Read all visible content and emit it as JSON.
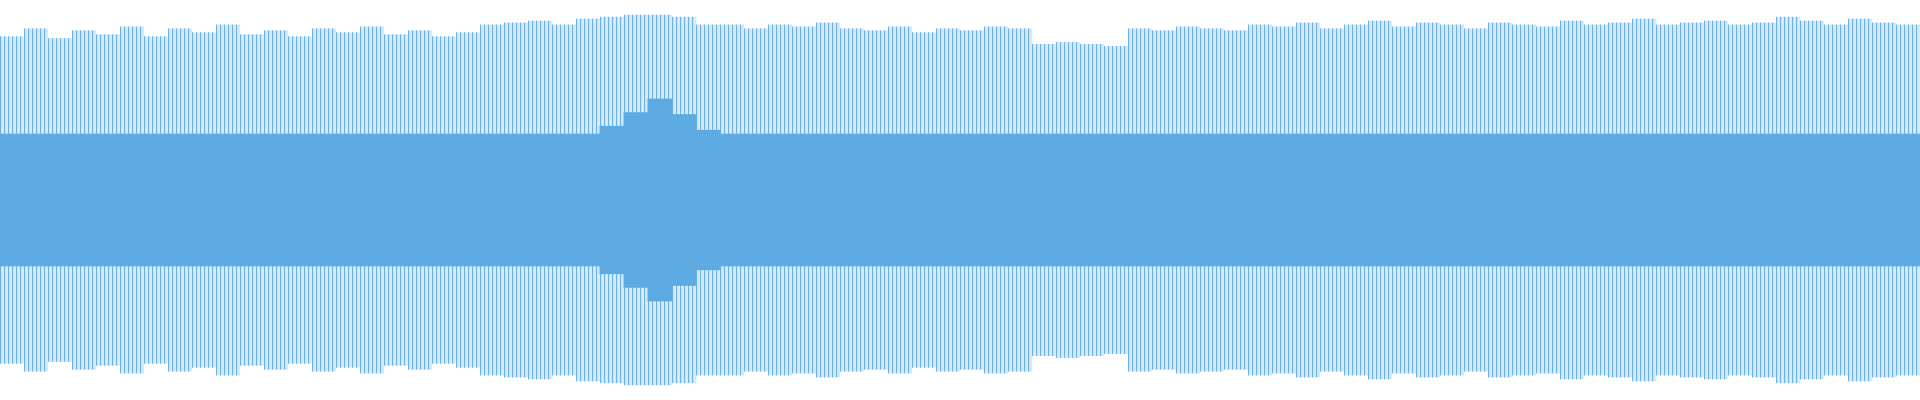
{
  "waveform": {
    "color": "#5dabe2",
    "peaks": [
      0.84,
      0.88,
      0.83,
      0.87,
      0.85,
      0.89,
      0.84,
      0.88,
      0.86,
      0.9,
      0.85,
      0.87,
      0.84,
      0.88,
      0.86,
      0.89,
      0.85,
      0.87,
      0.84,
      0.86,
      0.9,
      0.91,
      0.92,
      0.9,
      0.93,
      0.94,
      0.95,
      0.95,
      0.94,
      0.9,
      0.9,
      0.88,
      0.9,
      0.89,
      0.91,
      0.88,
      0.87,
      0.89,
      0.86,
      0.88,
      0.87,
      0.89,
      0.88,
      0.8,
      0.81,
      0.8,
      0.79,
      0.88,
      0.87,
      0.89,
      0.88,
      0.87,
      0.9,
      0.89,
      0.91,
      0.88,
      0.9,
      0.92,
      0.89,
      0.91,
      0.9,
      0.88,
      0.91,
      0.9,
      0.89,
      0.92,
      0.9,
      0.91,
      0.93,
      0.9,
      0.91,
      0.92,
      0.9,
      0.91,
      0.94,
      0.92,
      0.9,
      0.93,
      0.91,
      0.9
    ],
    "rms": [
      0.34,
      0.34,
      0.34,
      0.34,
      0.34,
      0.34,
      0.34,
      0.34,
      0.34,
      0.34,
      0.34,
      0.34,
      0.34,
      0.34,
      0.34,
      0.34,
      0.34,
      0.34,
      0.34,
      0.34,
      0.34,
      0.34,
      0.34,
      0.34,
      0.34,
      0.38,
      0.45,
      0.52,
      0.44,
      0.36,
      0.34,
      0.34,
      0.34,
      0.34,
      0.34,
      0.34,
      0.34,
      0.34,
      0.34,
      0.34,
      0.34,
      0.34,
      0.34,
      0.34,
      0.34,
      0.34,
      0.34,
      0.34,
      0.34,
      0.34,
      0.34,
      0.34,
      0.34,
      0.34,
      0.34,
      0.34,
      0.34,
      0.34,
      0.34,
      0.34,
      0.34,
      0.34,
      0.34,
      0.34,
      0.34,
      0.34,
      0.34,
      0.34,
      0.34,
      0.34,
      0.34,
      0.34,
      0.34,
      0.34,
      0.34,
      0.34,
      0.34,
      0.34,
      0.34,
      0.34
    ]
  }
}
